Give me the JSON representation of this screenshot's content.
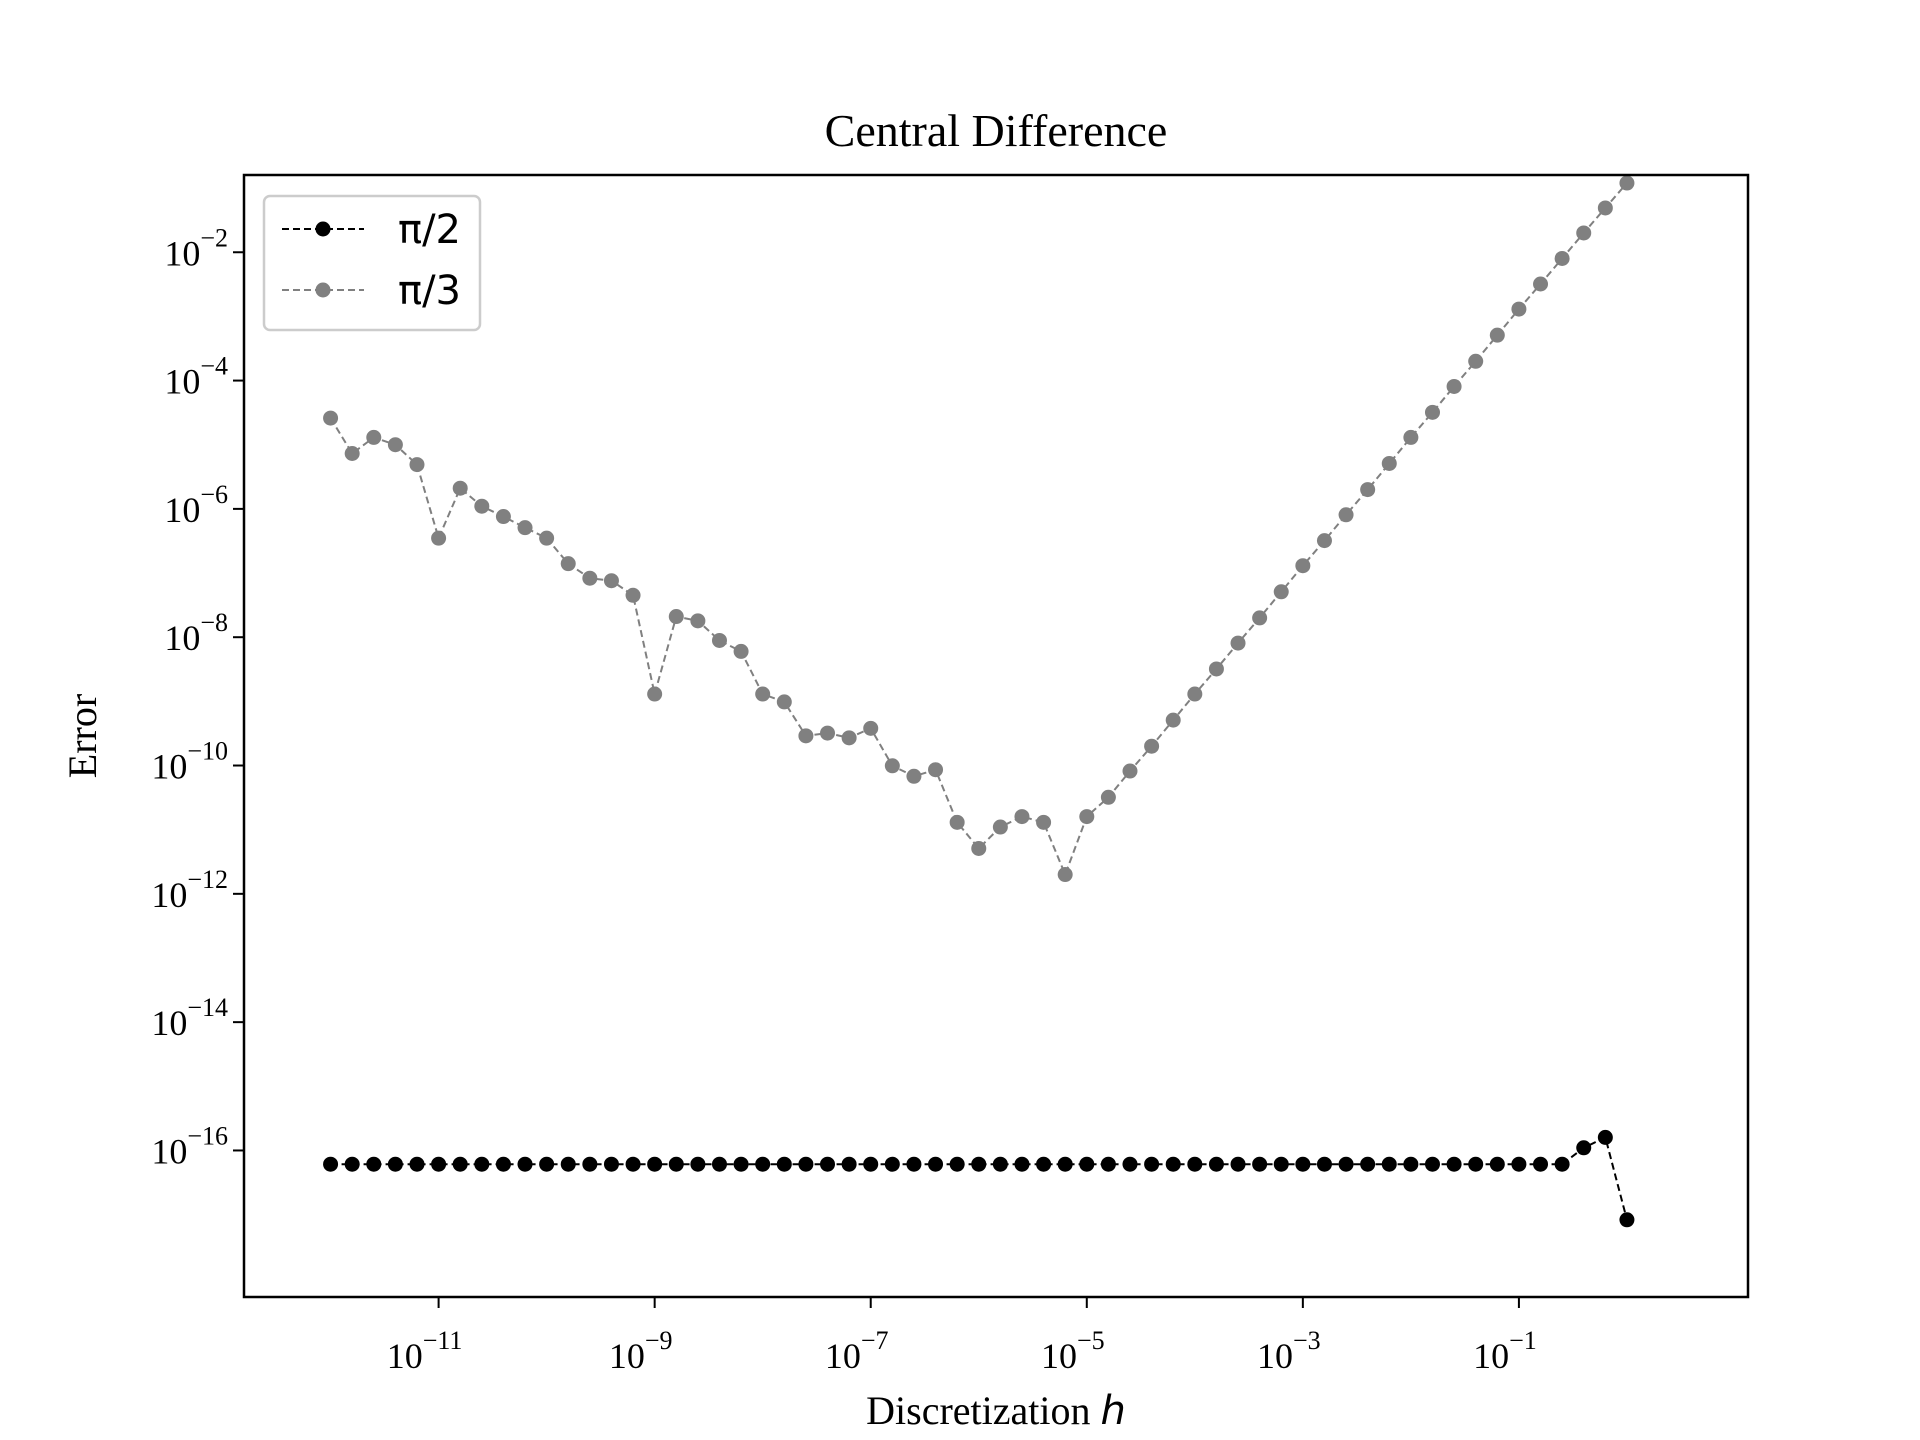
{
  "chart_data": {
    "type": "line",
    "title": "Central Difference",
    "xlabel": "Discretization",
    "xlabel_var": "h",
    "ylabel": "Error",
    "x_scale": "log",
    "y_scale": "log",
    "xlim": [
      1.58e-13,
      13.2
    ],
    "ylim": [
      5.2e-19,
      0.16
    ],
    "x_ticks": [
      {
        "value": 1e-11,
        "base": "10",
        "exp": "−11"
      },
      {
        "value": 1e-09,
        "base": "10",
        "exp": "−9"
      },
      {
        "value": 1e-07,
        "base": "10",
        "exp": "−7"
      },
      {
        "value": 1e-05,
        "base": "10",
        "exp": "−5"
      },
      {
        "value": 0.001,
        "base": "10",
        "exp": "−3"
      },
      {
        "value": 0.1,
        "base": "10",
        "exp": "−1"
      }
    ],
    "y_ticks": [
      {
        "value": 0.01,
        "base": "10",
        "exp": "−2"
      },
      {
        "value": 0.0001,
        "base": "10",
        "exp": "−4"
      },
      {
        "value": 1e-06,
        "base": "10",
        "exp": "−6"
      },
      {
        "value": 1e-08,
        "base": "10",
        "exp": "−8"
      },
      {
        "value": 1e-10,
        "base": "10",
        "exp": "−10"
      },
      {
        "value": 1e-12,
        "base": "10",
        "exp": "−12"
      },
      {
        "value": 1e-14,
        "base": "10",
        "exp": "−14"
      },
      {
        "value": 1e-16,
        "base": "10",
        "exp": "−16"
      }
    ],
    "grid": false,
    "legend": {
      "position": "top-left"
    },
    "x_log10": {
      "start": -12.0,
      "step": 0.2,
      "count": 61
    },
    "series": [
      {
        "name": "π/2",
        "color": "#000000",
        "line_style": "dashed",
        "marker": "circle",
        "y": [
          6.1e-17,
          6.1e-17,
          6.1e-17,
          6.1e-17,
          6.1e-17,
          6.1e-17,
          6.1e-17,
          6.1e-17,
          6.1e-17,
          6.1e-17,
          6.1e-17,
          6.1e-17,
          6.1e-17,
          6.1e-17,
          6.1e-17,
          6.1e-17,
          6.1e-17,
          6.1e-17,
          6.1e-17,
          6.1e-17,
          6.1e-17,
          6.1e-17,
          6.1e-17,
          6.1e-17,
          6.1e-17,
          6.1e-17,
          6.1e-17,
          6.1e-17,
          6.1e-17,
          6.1e-17,
          6.1e-17,
          6.1e-17,
          6.1e-17,
          6.1e-17,
          6.1e-17,
          6.1e-17,
          6.1e-17,
          6.1e-17,
          6.1e-17,
          6.1e-17,
          6.1e-17,
          6.1e-17,
          6.1e-17,
          6.1e-17,
          6.1e-17,
          6.1e-17,
          6.1e-17,
          6.1e-17,
          6.1e-17,
          6.1e-17,
          6.1e-17,
          6.1e-17,
          6.1e-17,
          6.1e-17,
          6.1e-17,
          6.1e-17,
          6.1e-17,
          6.1e-17,
          1.1e-16,
          1.6e-16,
          8.3e-18
        ]
      },
      {
        "name": "π/3",
        "color": "#808080",
        "line_style": "dashed",
        "marker": "circle",
        "y": [
          2.6e-05,
          7.3e-06,
          1.3e-05,
          1e-05,
          4.9e-06,
          3.5e-07,
          2.1e-06,
          1.1e-06,
          7.6e-07,
          5.1e-07,
          3.5e-07,
          1.4e-07,
          8.3e-08,
          7.6e-08,
          4.5e-08,
          1.3e-09,
          2.1e-08,
          1.8e-08,
          8.9e-09,
          6e-09,
          1.3e-09,
          9.8e-10,
          2.9e-10,
          3.2e-10,
          2.7e-10,
          3.8e-10,
          9.9e-11,
          6.8e-11,
          8.6e-11,
          1.3e-11,
          5.1e-12,
          1.1e-11,
          1.6e-11,
          1.3e-11,
          2e-12,
          1.6e-11,
          3.2e-11,
          8.2e-11,
          2e-10,
          5.1e-10,
          1.3e-09,
          3.2e-09,
          8.1e-09,
          2e-08,
          5.1e-08,
          1.3e-07,
          3.2e-07,
          8.1e-07,
          2e-06,
          5.1e-06,
          1.3e-05,
          3.2e-05,
          8.1e-05,
          0.0002,
          0.00051,
          0.0013,
          0.0032,
          0.008,
          0.02,
          0.049,
          0.12
        ]
      }
    ]
  }
}
